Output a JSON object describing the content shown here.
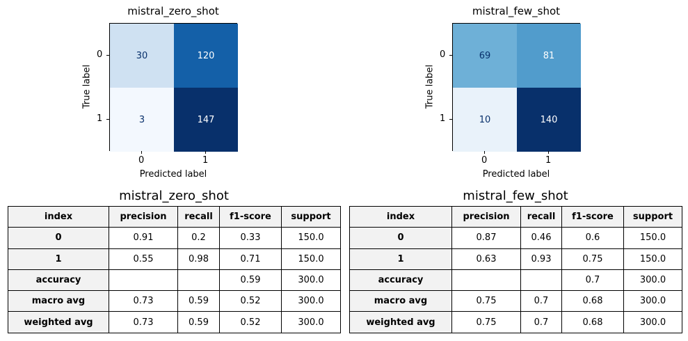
{
  "chart_data": [
    {
      "type": "heatmap",
      "title": "mistral_zero_shot",
      "xlabel": "Predicted label",
      "ylabel": "True label",
      "x_ticks": [
        "0",
        "1"
      ],
      "y_ticks": [
        "0",
        "1"
      ],
      "matrix": [
        [
          30,
          120
        ],
        [
          3,
          147
        ]
      ],
      "vmin": 0,
      "vmax": 147,
      "colormap": "Blues"
    },
    {
      "type": "heatmap",
      "title": "mistral_few_shot",
      "xlabel": "Predicted label",
      "ylabel": "True label",
      "x_ticks": [
        "0",
        "1"
      ],
      "y_ticks": [
        "0",
        "1"
      ],
      "matrix": [
        [
          69,
          81
        ],
        [
          10,
          140
        ]
      ],
      "vmin": 0,
      "vmax": 140,
      "colormap": "Blues"
    },
    {
      "type": "table",
      "title": "mistral_zero_shot",
      "columns": [
        "index",
        "precision",
        "recall",
        "f1-score",
        "support"
      ],
      "rows": [
        [
          "0",
          "0.91",
          "0.2",
          "0.33",
          "150.0"
        ],
        [
          "1",
          "0.55",
          "0.98",
          "0.71",
          "150.0"
        ],
        [
          "accuracy",
          "",
          "",
          "0.59",
          "300.0"
        ],
        [
          "macro avg",
          "0.73",
          "0.59",
          "0.52",
          "300.0"
        ],
        [
          "weighted avg",
          "0.73",
          "0.59",
          "0.52",
          "300.0"
        ]
      ]
    },
    {
      "type": "table",
      "title": "mistral_few_shot",
      "columns": [
        "index",
        "precision",
        "recall",
        "f1-score",
        "support"
      ],
      "rows": [
        [
          "0",
          "0.87",
          "0.46",
          "0.6",
          "150.0"
        ],
        [
          "1",
          "0.63",
          "0.93",
          "0.75",
          "150.0"
        ],
        [
          "accuracy",
          "",
          "",
          "0.7",
          "300.0"
        ],
        [
          "macro avg",
          "0.75",
          "0.7",
          "0.68",
          "300.0"
        ],
        [
          "weighted avg",
          "0.75",
          "0.7",
          "0.68",
          "300.0"
        ]
      ]
    }
  ],
  "colors": {
    "blue_light": "#f7fbff",
    "blue_dark": "#08306b",
    "text_dark": "#08306b",
    "text_light": "#ffffff",
    "header_bg": "#f2f2f2"
  }
}
